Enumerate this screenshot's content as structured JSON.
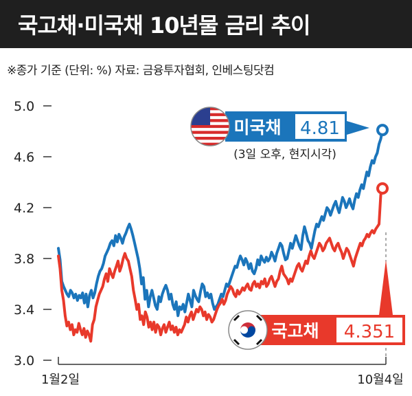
{
  "title": "국고채·미국채 10년물 금리 추이",
  "note": "※종가 기준 (단위: %) 자료: 금융투자협회, 인베스팅닷컴",
  "chart_data": {
    "type": "line",
    "ylim": [
      3.0,
      5.0
    ],
    "yticks": [
      "3.0",
      "3.4",
      "3.8",
      "4.2",
      "4.6",
      "5.0"
    ],
    "xlabels": [
      "1월2일",
      "10월4일"
    ],
    "grid": false,
    "series": [
      {
        "name": "미국채",
        "color": "#1b75bb",
        "end_value": "4.81",
        "end_note": "(3일 오후, 현지시각)",
        "values": [
          3.88,
          3.79,
          3.62,
          3.58,
          3.55,
          3.52,
          3.5,
          3.55,
          3.53,
          3.49,
          3.52,
          3.47,
          3.51,
          3.49,
          3.53,
          3.45,
          3.52,
          3.42,
          3.51,
          3.55,
          3.49,
          3.53,
          3.6,
          3.66,
          3.7,
          3.72,
          3.76,
          3.82,
          3.85,
          3.88,
          3.92,
          3.94,
          3.9,
          3.98,
          3.93,
          3.99,
          3.96,
          3.92,
          3.97,
          4.0,
          4.04,
          4.07,
          4.03,
          3.98,
          3.92,
          3.86,
          3.8,
          3.72,
          3.6,
          3.65,
          3.48,
          3.55,
          3.42,
          3.5,
          3.55,
          3.49,
          3.43,
          3.4,
          3.5,
          3.46,
          3.52,
          3.56,
          3.59,
          3.55,
          3.48,
          3.52,
          3.44,
          3.4,
          3.46,
          3.35,
          3.42,
          3.4,
          3.44,
          3.38,
          3.45,
          3.52,
          3.47,
          3.42,
          3.55,
          3.51,
          3.48,
          3.46,
          3.54,
          3.6,
          3.58,
          3.5,
          3.53,
          3.49,
          3.52,
          3.45,
          3.4,
          3.42,
          3.44,
          3.48,
          3.52,
          3.5,
          3.55,
          3.6,
          3.58,
          3.62,
          3.66,
          3.7,
          3.74,
          3.73,
          3.78,
          3.82,
          3.79,
          3.75,
          3.8,
          3.77,
          3.72,
          3.76,
          3.7,
          3.68,
          3.72,
          3.79,
          3.75,
          3.82,
          3.79,
          3.77,
          3.81,
          3.78,
          3.8,
          3.85,
          3.82,
          3.78,
          3.84,
          3.88,
          3.92,
          3.9,
          3.84,
          3.79,
          3.8,
          3.86,
          3.92,
          3.88,
          3.93,
          3.98,
          3.94,
          3.9,
          3.87,
          3.98,
          4.05,
          4.0,
          3.94,
          3.92,
          3.88,
          3.95,
          4.02,
          4.07,
          4.05,
          4.09,
          4.13,
          4.1,
          4.15,
          4.2,
          4.18,
          4.14,
          4.18,
          4.22,
          4.25,
          4.2,
          4.16,
          4.22,
          4.28,
          4.25,
          4.2,
          4.23,
          4.27,
          4.22,
          4.19,
          4.26,
          4.31,
          4.28,
          4.34,
          4.38,
          4.35,
          4.42,
          4.48,
          4.45,
          4.52,
          4.57,
          4.55,
          4.6,
          4.63,
          4.7,
          4.74,
          4.81
        ]
      },
      {
        "name": "국고채",
        "color": "#e8392b",
        "end_value": "4.351",
        "values": [
          3.82,
          3.72,
          3.55,
          3.47,
          3.35,
          3.27,
          3.3,
          3.24,
          3.28,
          3.2,
          3.24,
          3.22,
          3.29,
          3.24,
          3.2,
          3.25,
          3.18,
          3.23,
          3.2,
          3.15,
          3.28,
          3.32,
          3.42,
          3.47,
          3.52,
          3.55,
          3.58,
          3.64,
          3.68,
          3.62,
          3.72,
          3.68,
          3.65,
          3.7,
          3.74,
          3.78,
          3.7,
          3.74,
          3.8,
          3.84,
          3.8,
          3.78,
          3.72,
          3.66,
          3.55,
          3.48,
          3.4,
          3.44,
          3.32,
          3.35,
          3.28,
          3.38,
          3.34,
          3.26,
          3.3,
          3.24,
          3.3,
          3.22,
          3.28,
          3.26,
          3.2,
          3.25,
          3.28,
          3.22,
          3.26,
          3.3,
          3.24,
          3.27,
          3.22,
          3.26,
          3.2,
          3.24,
          3.22,
          3.25,
          3.28,
          3.34,
          3.3,
          3.35,
          3.38,
          3.32,
          3.36,
          3.4,
          3.38,
          3.42,
          3.4,
          3.35,
          3.38,
          3.32,
          3.36,
          3.34,
          3.3,
          3.32,
          3.36,
          3.4,
          3.43,
          3.45,
          3.48,
          3.44,
          3.47,
          3.52,
          3.55,
          3.58,
          3.56,
          3.52,
          3.5,
          3.55,
          3.52,
          3.54,
          3.57,
          3.55,
          3.58,
          3.6,
          3.56,
          3.55,
          3.6,
          3.62,
          3.58,
          3.6,
          3.57,
          3.62,
          3.6,
          3.64,
          3.58,
          3.6,
          3.64,
          3.66,
          3.62,
          3.58,
          3.62,
          3.64,
          3.7,
          3.74,
          3.68,
          3.66,
          3.64,
          3.6,
          3.64,
          3.62,
          3.66,
          3.7,
          3.74,
          3.76,
          3.72,
          3.7,
          3.74,
          3.78,
          3.76,
          3.82,
          3.86,
          3.82,
          3.8,
          3.84,
          3.88,
          3.92,
          3.9,
          3.86,
          3.88,
          3.92,
          3.94,
          3.96,
          3.92,
          3.88,
          3.86,
          3.9,
          3.92,
          3.88,
          3.85,
          3.8,
          3.84,
          3.88,
          3.86,
          3.82,
          3.78,
          3.74,
          3.8,
          3.84,
          3.88,
          3.92,
          3.9,
          3.94,
          3.96,
          3.99,
          3.97,
          4.0,
          4.02,
          4.0,
          4.03,
          4.05,
          4.07,
          4.3,
          4.351
        ]
      }
    ]
  }
}
